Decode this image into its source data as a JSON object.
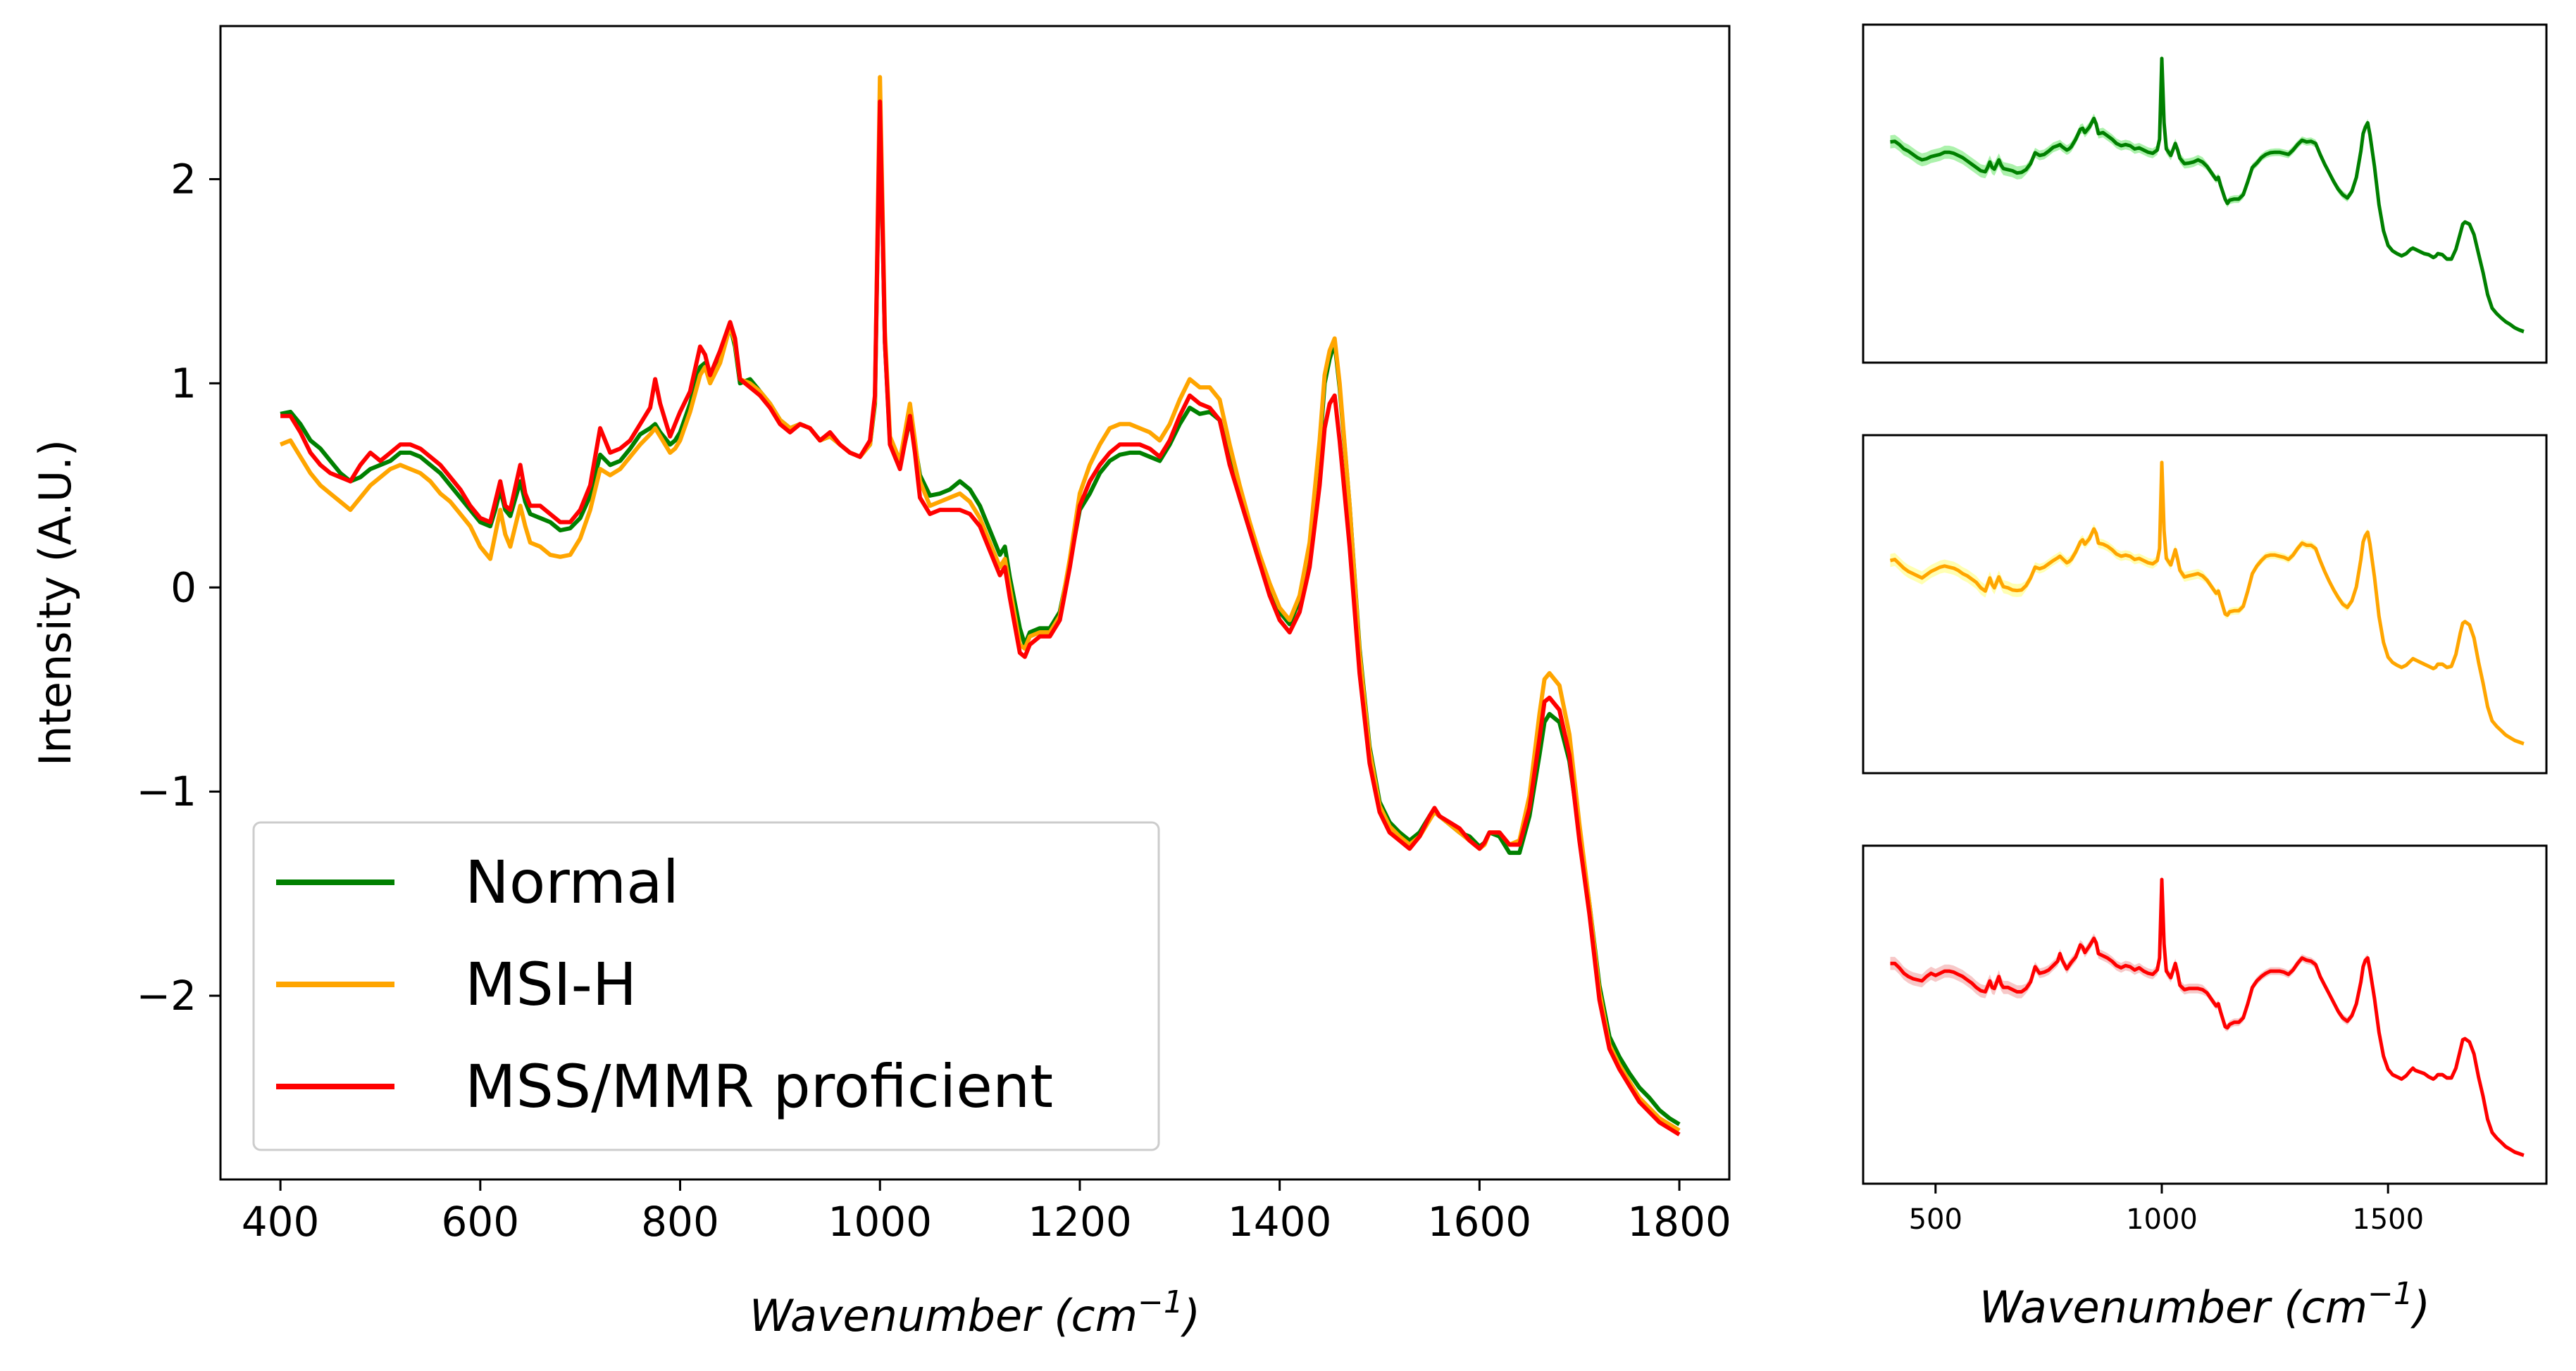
{
  "chart_data": [
    {
      "type": "line",
      "panel": "main",
      "xlabel": "Wavenumber (cm⁻¹)",
      "ylabel": "Intensity (A.U.)",
      "xlim": [
        340,
        1850
      ],
      "ylim": [
        -2.9,
        2.75
      ],
      "xticks": [
        400,
        600,
        800,
        1000,
        1200,
        1400,
        1600,
        1800
      ],
      "xtick_labels": [
        "400",
        "600",
        "800",
        "1000",
        "1200",
        "1400",
        "1600",
        "1800"
      ],
      "yticks": [
        -2,
        -1,
        0,
        1,
        2
      ],
      "ytick_labels": [
        "−2",
        "−1",
        "0",
        "1",
        "2"
      ],
      "grid": false,
      "legend_position": "lower-left",
      "series": [
        {
          "name": "Normal",
          "color": "#008000",
          "x": [
            400,
            410,
            420,
            430,
            440,
            450,
            460,
            470,
            480,
            490,
            500,
            510,
            520,
            530,
            540,
            550,
            560,
            570,
            580,
            590,
            600,
            610,
            615,
            620,
            625,
            630,
            640,
            645,
            650,
            660,
            670,
            680,
            690,
            700,
            710,
            720,
            730,
            740,
            750,
            760,
            770,
            775,
            780,
            790,
            795,
            800,
            810,
            820,
            825,
            830,
            840,
            850,
            855,
            860,
            870,
            880,
            890,
            900,
            910,
            920,
            930,
            940,
            950,
            960,
            970,
            980,
            990,
            995,
            1000,
            1005,
            1010,
            1020,
            1030,
            1035,
            1040,
            1050,
            1060,
            1070,
            1080,
            1090,
            1100,
            1110,
            1120,
            1125,
            1130,
            1140,
            1145,
            1150,
            1160,
            1170,
            1180,
            1190,
            1200,
            1210,
            1220,
            1230,
            1240,
            1250,
            1260,
            1270,
            1280,
            1290,
            1300,
            1310,
            1320,
            1330,
            1340,
            1350,
            1360,
            1370,
            1380,
            1390,
            1400,
            1410,
            1420,
            1430,
            1440,
            1445,
            1450,
            1455,
            1460,
            1470,
            1480,
            1490,
            1500,
            1510,
            1520,
            1530,
            1540,
            1550,
            1555,
            1560,
            1570,
            1580,
            1590,
            1600,
            1605,
            1610,
            1620,
            1630,
            1640,
            1650,
            1660,
            1665,
            1670,
            1680,
            1690,
            1700,
            1710,
            1720,
            1730,
            1740,
            1750,
            1760,
            1770,
            1780,
            1790,
            1800
          ],
          "y": [
            0.85,
            0.86,
            0.8,
            0.72,
            0.68,
            0.62,
            0.56,
            0.52,
            0.54,
            0.58,
            0.6,
            0.62,
            0.66,
            0.66,
            0.64,
            0.6,
            0.56,
            0.5,
            0.44,
            0.38,
            0.32,
            0.3,
            0.38,
            0.48,
            0.38,
            0.35,
            0.52,
            0.42,
            0.36,
            0.34,
            0.32,
            0.28,
            0.29,
            0.34,
            0.45,
            0.65,
            0.6,
            0.62,
            0.68,
            0.75,
            0.78,
            0.8,
            0.76,
            0.7,
            0.72,
            0.76,
            0.9,
            1.08,
            1.1,
            1.02,
            1.12,
            1.28,
            1.18,
            1.0,
            1.02,
            0.96,
            0.9,
            0.82,
            0.78,
            0.8,
            0.78,
            0.72,
            0.74,
            0.7,
            0.66,
            0.64,
            0.7,
            0.9,
            2.38,
            1.2,
            0.72,
            0.6,
            0.82,
            0.7,
            0.55,
            0.45,
            0.46,
            0.48,
            0.52,
            0.48,
            0.4,
            0.28,
            0.16,
            0.2,
            0.05,
            -0.2,
            -0.28,
            -0.22,
            -0.2,
            -0.2,
            -0.12,
            0.12,
            0.38,
            0.46,
            0.56,
            0.62,
            0.65,
            0.66,
            0.66,
            0.64,
            0.62,
            0.7,
            0.8,
            0.88,
            0.85,
            0.86,
            0.82,
            0.62,
            0.44,
            0.28,
            0.12,
            -0.02,
            -0.12,
            -0.18,
            -0.06,
            0.2,
            0.68,
            1.0,
            1.12,
            1.2,
            0.98,
            0.4,
            -0.3,
            -0.78,
            -1.05,
            -1.15,
            -1.2,
            -1.24,
            -1.2,
            -1.12,
            -1.1,
            -1.12,
            -1.16,
            -1.2,
            -1.22,
            -1.27,
            -1.25,
            -1.2,
            -1.22,
            -1.3,
            -1.3,
            -1.12,
            -0.82,
            -0.66,
            -0.62,
            -0.66,
            -0.85,
            -1.2,
            -1.55,
            -1.95,
            -2.2,
            -2.3,
            -2.38,
            -2.45,
            -2.5,
            -2.56,
            -2.6,
            -2.63
          ]
        },
        {
          "name": "MSI-H",
          "color": "#FFA500",
          "x": [
            400,
            410,
            420,
            430,
            440,
            450,
            460,
            470,
            480,
            490,
            500,
            510,
            520,
            530,
            540,
            550,
            560,
            570,
            580,
            590,
            600,
            610,
            615,
            620,
            625,
            630,
            640,
            645,
            650,
            660,
            670,
            680,
            690,
            700,
            710,
            720,
            730,
            740,
            750,
            760,
            770,
            775,
            780,
            790,
            795,
            800,
            810,
            820,
            825,
            830,
            840,
            850,
            855,
            860,
            870,
            880,
            890,
            900,
            910,
            920,
            930,
            940,
            950,
            960,
            970,
            980,
            990,
            995,
            1000,
            1005,
            1010,
            1020,
            1030,
            1035,
            1040,
            1050,
            1060,
            1070,
            1080,
            1090,
            1100,
            1110,
            1120,
            1125,
            1130,
            1140,
            1145,
            1150,
            1160,
            1170,
            1180,
            1190,
            1200,
            1210,
            1220,
            1230,
            1240,
            1250,
            1260,
            1270,
            1280,
            1290,
            1300,
            1310,
            1320,
            1330,
            1340,
            1350,
            1360,
            1370,
            1380,
            1390,
            1400,
            1410,
            1420,
            1430,
            1440,
            1445,
            1450,
            1455,
            1460,
            1470,
            1480,
            1490,
            1500,
            1510,
            1520,
            1530,
            1540,
            1550,
            1555,
            1560,
            1570,
            1580,
            1590,
            1600,
            1605,
            1610,
            1620,
            1630,
            1640,
            1650,
            1660,
            1665,
            1670,
            1680,
            1690,
            1700,
            1710,
            1720,
            1730,
            1740,
            1750,
            1760,
            1770,
            1780,
            1790,
            1800
          ],
          "y": [
            0.7,
            0.72,
            0.64,
            0.56,
            0.5,
            0.46,
            0.42,
            0.38,
            0.44,
            0.5,
            0.54,
            0.58,
            0.6,
            0.58,
            0.56,
            0.52,
            0.46,
            0.42,
            0.36,
            0.3,
            0.2,
            0.14,
            0.26,
            0.38,
            0.26,
            0.2,
            0.4,
            0.3,
            0.22,
            0.2,
            0.16,
            0.15,
            0.16,
            0.24,
            0.38,
            0.58,
            0.55,
            0.58,
            0.64,
            0.7,
            0.75,
            0.78,
            0.74,
            0.66,
            0.68,
            0.72,
            0.86,
            1.04,
            1.08,
            1.0,
            1.1,
            1.28,
            1.2,
            1.02,
            1.0,
            0.96,
            0.9,
            0.82,
            0.78,
            0.8,
            0.78,
            0.72,
            0.74,
            0.7,
            0.66,
            0.64,
            0.7,
            0.92,
            2.5,
            1.25,
            0.74,
            0.62,
            0.9,
            0.72,
            0.52,
            0.4,
            0.42,
            0.44,
            0.46,
            0.42,
            0.34,
            0.22,
            0.1,
            0.14,
            0.0,
            -0.28,
            -0.3,
            -0.24,
            -0.22,
            -0.22,
            -0.14,
            0.14,
            0.46,
            0.6,
            0.7,
            0.78,
            0.8,
            0.8,
            0.78,
            0.76,
            0.72,
            0.8,
            0.92,
            1.02,
            0.98,
            0.98,
            0.92,
            0.7,
            0.5,
            0.32,
            0.16,
            0.02,
            -0.1,
            -0.16,
            -0.04,
            0.22,
            0.72,
            1.04,
            1.16,
            1.22,
            1.0,
            0.4,
            -0.32,
            -0.8,
            -1.07,
            -1.17,
            -1.22,
            -1.26,
            -1.22,
            -1.14,
            -1.1,
            -1.12,
            -1.16,
            -1.2,
            -1.24,
            -1.28,
            -1.26,
            -1.2,
            -1.2,
            -1.26,
            -1.24,
            -1.02,
            -0.62,
            -0.45,
            -0.42,
            -0.48,
            -0.72,
            -1.16,
            -1.55,
            -1.98,
            -2.24,
            -2.34,
            -2.42,
            -2.5,
            -2.55,
            -2.6,
            -2.63,
            -2.66
          ]
        },
        {
          "name": "MSS/MMR proficient",
          "color": "#FF0000",
          "x": [
            400,
            410,
            420,
            430,
            440,
            450,
            460,
            470,
            480,
            490,
            500,
            510,
            520,
            530,
            540,
            550,
            560,
            570,
            580,
            590,
            600,
            610,
            615,
            620,
            625,
            630,
            640,
            645,
            650,
            660,
            670,
            680,
            690,
            700,
            710,
            720,
            730,
            740,
            750,
            760,
            770,
            775,
            780,
            790,
            795,
            800,
            810,
            820,
            825,
            830,
            840,
            850,
            855,
            860,
            870,
            880,
            890,
            900,
            910,
            920,
            930,
            940,
            950,
            960,
            970,
            980,
            990,
            995,
            1000,
            1005,
            1010,
            1020,
            1030,
            1035,
            1040,
            1050,
            1060,
            1070,
            1080,
            1090,
            1100,
            1110,
            1120,
            1125,
            1130,
            1140,
            1145,
            1150,
            1160,
            1170,
            1180,
            1190,
            1200,
            1210,
            1220,
            1230,
            1240,
            1250,
            1260,
            1270,
            1280,
            1290,
            1300,
            1310,
            1320,
            1330,
            1340,
            1350,
            1360,
            1370,
            1380,
            1390,
            1400,
            1410,
            1420,
            1430,
            1440,
            1445,
            1450,
            1455,
            1460,
            1470,
            1480,
            1490,
            1500,
            1510,
            1520,
            1530,
            1540,
            1550,
            1555,
            1560,
            1570,
            1580,
            1590,
            1600,
            1605,
            1610,
            1620,
            1630,
            1640,
            1650,
            1660,
            1665,
            1670,
            1680,
            1690,
            1700,
            1710,
            1720,
            1730,
            1740,
            1750,
            1760,
            1770,
            1780,
            1790,
            1800
          ],
          "y": [
            0.84,
            0.84,
            0.76,
            0.66,
            0.6,
            0.56,
            0.54,
            0.52,
            0.6,
            0.66,
            0.62,
            0.66,
            0.7,
            0.7,
            0.68,
            0.64,
            0.6,
            0.54,
            0.48,
            0.4,
            0.34,
            0.32,
            0.42,
            0.52,
            0.4,
            0.38,
            0.6,
            0.46,
            0.4,
            0.4,
            0.36,
            0.32,
            0.32,
            0.38,
            0.5,
            0.78,
            0.66,
            0.68,
            0.72,
            0.8,
            0.88,
            1.02,
            0.9,
            0.74,
            0.8,
            0.86,
            0.96,
            1.18,
            1.14,
            1.04,
            1.16,
            1.3,
            1.22,
            1.02,
            0.98,
            0.94,
            0.88,
            0.8,
            0.76,
            0.8,
            0.78,
            0.72,
            0.76,
            0.7,
            0.66,
            0.64,
            0.72,
            0.94,
            2.38,
            1.2,
            0.7,
            0.58,
            0.84,
            0.66,
            0.44,
            0.36,
            0.38,
            0.38,
            0.38,
            0.36,
            0.3,
            0.18,
            0.06,
            0.1,
            -0.05,
            -0.32,
            -0.34,
            -0.28,
            -0.24,
            -0.24,
            -0.16,
            0.1,
            0.4,
            0.52,
            0.6,
            0.66,
            0.7,
            0.7,
            0.7,
            0.68,
            0.64,
            0.72,
            0.84,
            0.94,
            0.9,
            0.88,
            0.82,
            0.6,
            0.44,
            0.28,
            0.12,
            -0.04,
            -0.16,
            -0.22,
            -0.12,
            0.1,
            0.5,
            0.78,
            0.9,
            0.94,
            0.72,
            0.2,
            -0.42,
            -0.86,
            -1.1,
            -1.2,
            -1.24,
            -1.28,
            -1.22,
            -1.12,
            -1.08,
            -1.12,
            -1.15,
            -1.18,
            -1.24,
            -1.28,
            -1.25,
            -1.2,
            -1.2,
            -1.26,
            -1.26,
            -1.08,
            -0.74,
            -0.56,
            -0.54,
            -0.6,
            -0.82,
            -1.24,
            -1.6,
            -2.02,
            -2.26,
            -2.36,
            -2.44,
            -2.52,
            -2.57,
            -2.62,
            -2.65,
            -2.68
          ]
        }
      ]
    },
    {
      "type": "area",
      "panel": "right-top",
      "series_ref": "Normal",
      "xlabel": "",
      "xlim": [
        340,
        1850
      ],
      "ylim": [
        -3.2,
        3.0
      ],
      "yaxis_visible": false,
      "band": "mean ± standard deviation",
      "band_color": "#90EE90",
      "line_color": "#008000"
    },
    {
      "type": "area",
      "panel": "right-middle",
      "series_ref": "MSI-H",
      "xlabel": "",
      "xlim": [
        340,
        1850
      ],
      "ylim": [
        -3.2,
        3.0
      ],
      "yaxis_visible": false,
      "band": "mean ± standard deviation",
      "band_color": "#FFFF99",
      "line_color": "#FFA500"
    },
    {
      "type": "area",
      "panel": "right-bottom",
      "series_ref": "MSS/MMR proficient",
      "xlabel": "Wavenumber (cm⁻¹)",
      "xlim": [
        340,
        1850
      ],
      "ylim": [
        -3.2,
        3.0
      ],
      "xticks": [
        500,
        1000,
        1500
      ],
      "xtick_labels": [
        "500",
        "1000",
        "1500"
      ],
      "yaxis_visible": false,
      "band": "mean ± standard deviation",
      "band_color": "#F4B6B6",
      "line_color": "#FF0000"
    }
  ]
}
